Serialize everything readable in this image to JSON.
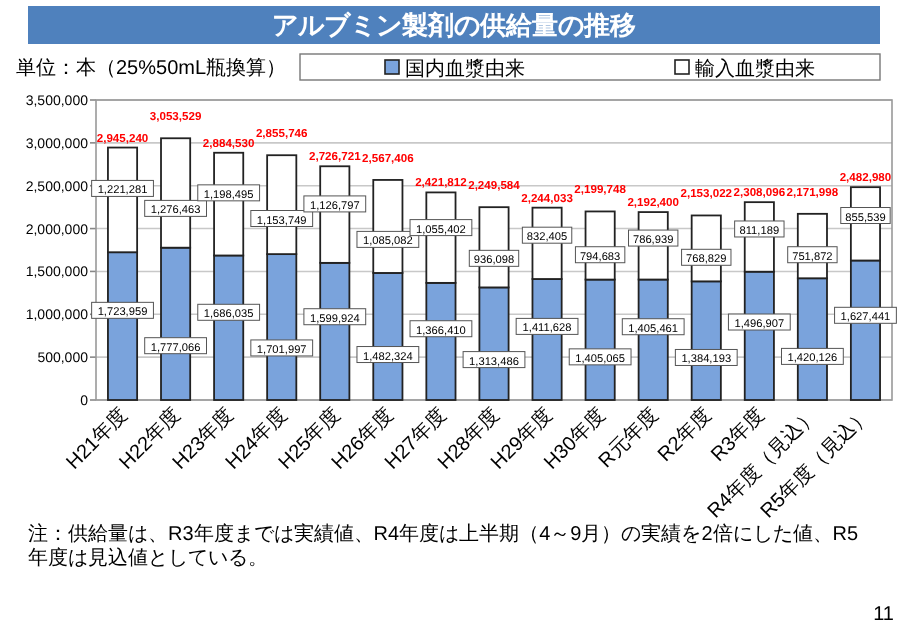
{
  "chart_data": {
    "type": "bar",
    "title": "アルブミン製剤の供給量の推移",
    "categories": [
      "H21年度",
      "H22年度",
      "H23年度",
      "H24年度",
      "H25年度",
      "H26年度",
      "H27年度",
      "H28年度",
      "H29年度",
      "H30年度",
      "R元年度",
      "R2年度",
      "R3年度",
      "R4年度（見込）",
      "R5年度（見込）"
    ],
    "series": [
      {
        "name": "国内血漿由来",
        "color": "#7aa3dc",
        "value_labels": [
          "1,723,959",
          "1,777,066",
          "1,686,035",
          "1,701,997",
          "1,599,924",
          "1,482,324",
          "1,366,410",
          "1,313,486",
          "1,411,628",
          "1,405,065",
          "1,405,461",
          "1,384,193",
          "1,496,907",
          "1,420,126",
          "1,627,441"
        ],
        "values": [
          1723959,
          1777066,
          1686035,
          1701997,
          1599924,
          1482324,
          1366410,
          1313486,
          1411628,
          1405065,
          1405461,
          1384193,
          1496907,
          1420126,
          1627441
        ]
      },
      {
        "name": "輸入血漿由来",
        "color": "#ffffff",
        "value_labels": [
          "1,221,281",
          "1,276,463",
          "1,198,495",
          "1,153,749",
          "1,126,797",
          "1,085,082",
          "1,055,402",
          "936,098",
          "832,405",
          "794,683",
          "786,939",
          "768,829",
          "811,189",
          "751,872",
          "855,539"
        ],
        "values": [
          1221281,
          1276463,
          1198495,
          1153749,
          1126797,
          1085082,
          1055402,
          936098,
          832405,
          794683,
          786939,
          768829,
          811189,
          751872,
          855539
        ]
      }
    ],
    "stacked": true,
    "totals": [
      "2,945,240",
      "3,053,529",
      "2,884,530",
      "2,855,746",
      "2,726,721",
      "2,567,406",
      "2,421,812",
      "2,249,584",
      "2,244,033",
      "2,199,748",
      "2,192,400",
      "2,153,022",
      "2,308,096",
      "2,171,998",
      "2,482,980"
    ],
    "ylim": [
      0,
      3500000
    ],
    "yticks": [
      {
        "value": 0,
        "label": "0"
      },
      {
        "value": 500000,
        "label": "500,000"
      },
      {
        "value": 1000000,
        "label": "1,000,000"
      },
      {
        "value": 1500000,
        "label": "1,500,000"
      },
      {
        "value": 2000000,
        "label": "2,000,000"
      },
      {
        "value": 2500000,
        "label": "2,500,000"
      },
      {
        "value": 3000000,
        "label": "3,000,000"
      },
      {
        "value": 3500000,
        "label": "3,500,000"
      }
    ],
    "grid": "y",
    "legend": "top",
    "annotations": [
      "単位：本（25%50mL瓶換算）",
      "注：供給量は、R3年度までは実績値、R4年度は上半期（4～9月）の実績を2倍にした値、R5年度は見込値としている。",
      "11"
    ]
  }
}
